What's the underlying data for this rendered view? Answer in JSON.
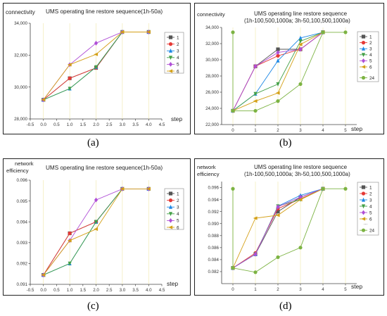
{
  "chart_data": [
    {
      "type": "line",
      "panel_label": "(a)",
      "title": "UMS operating line restore sequence(1h-50a)",
      "ylabel": "connectivity",
      "xlabel": "step",
      "xlim": [
        -0.5,
        4.5
      ],
      "ylim": [
        28000,
        34000
      ],
      "xticks": [
        "-0.5",
        "0.0",
        "0.5",
        "1.0",
        "1.5",
        "2.0",
        "2.5",
        "3.0",
        "3.5",
        "4.0",
        "4.5"
      ],
      "yticks": [
        "28,000",
        "30,000",
        "32,000",
        "34,000"
      ],
      "legend_position": "right",
      "series": [
        {
          "name": "1",
          "color": "#555555",
          "marker": "square",
          "x": [
            0,
            1,
            2,
            3,
            4
          ],
          "y": [
            29200,
            30550,
            31200,
            33450,
            33450
          ]
        },
        {
          "name": "2",
          "color": "#e53935",
          "marker": "circle",
          "x": [
            0,
            1,
            2,
            3,
            4
          ],
          "y": [
            29200,
            30550,
            31200,
            33450,
            33450
          ]
        },
        {
          "name": "3",
          "color": "#1e88e5",
          "marker": "triangle",
          "x": [
            0,
            1,
            2,
            3,
            4
          ],
          "y": [
            29200,
            29900,
            31250,
            33450,
            33450
          ]
        },
        {
          "name": "4",
          "color": "#43a047",
          "marker": "tri-down",
          "x": [
            0,
            1,
            2,
            3,
            4
          ],
          "y": [
            29200,
            29900,
            31250,
            33450,
            33450
          ]
        },
        {
          "name": "5",
          "color": "#b04fd6",
          "marker": "diamond",
          "x": [
            0,
            1,
            2,
            3,
            4
          ],
          "y": [
            29200,
            31400,
            32750,
            33450,
            33450
          ]
        },
        {
          "name": "6",
          "color": "#d4a017",
          "marker": "tri-left",
          "x": [
            0,
            1,
            2,
            3,
            4
          ],
          "y": [
            29200,
            31400,
            32050,
            33450,
            33450
          ]
        }
      ]
    },
    {
      "type": "line",
      "panel_label": "(b)",
      "title": "UMS operating line restore sequence",
      "subtitle": "(1h-100,500,1000a; 3h-50,100,500,1000a)",
      "ylabel": "connectivity",
      "xlabel": "step",
      "xlim": [
        -0.5,
        5.5
      ],
      "ylim": [
        22000,
        34000
      ],
      "xticks": [
        "0",
        "1",
        "2",
        "3",
        "4",
        "5"
      ],
      "yticks": [
        "22,000",
        "24,000",
        "26,000",
        "28,000",
        "30,000",
        "32,000",
        "34,000"
      ],
      "legend_position": "right",
      "series": [
        {
          "name": "1",
          "color": "#555555",
          "marker": "square",
          "x": [
            0,
            1,
            2,
            3,
            4
          ],
          "y": [
            23700,
            29200,
            31300,
            31300,
            33400
          ]
        },
        {
          "name": "2",
          "color": "#e53935",
          "marker": "circle",
          "x": [
            0,
            1,
            2,
            3,
            4
          ],
          "y": [
            23700,
            29200,
            30500,
            31300,
            33400
          ]
        },
        {
          "name": "3",
          "color": "#1e88e5",
          "marker": "triangle",
          "x": [
            0,
            1,
            2,
            3,
            4
          ],
          "y": [
            23700,
            25800,
            29900,
            32700,
            33400
          ]
        },
        {
          "name": "4",
          "color": "#43a047",
          "marker": "tri-down",
          "x": [
            0,
            1,
            2,
            3,
            4
          ],
          "y": [
            23700,
            25800,
            27000,
            32300,
            33400
          ]
        },
        {
          "name": "5",
          "color": "#b04fd6",
          "marker": "diamond",
          "x": [
            0,
            1,
            2,
            3,
            4
          ],
          "y": [
            23700,
            29200,
            30900,
            31300,
            33400
          ]
        },
        {
          "name": "6",
          "color": "#d4a017",
          "marker": "tri-left",
          "x": [
            0,
            1,
            2,
            3,
            4
          ],
          "y": [
            23700,
            24900,
            25900,
            31900,
            33400
          ]
        },
        {
          "name": "24",
          "color": "#7cb342",
          "marker": "circle",
          "x": [
            0,
            0,
            1,
            2,
            3,
            4,
            5
          ],
          "y": [
            33400,
            23700,
            23700,
            24900,
            27000,
            33400,
            33400
          ]
        }
      ]
    },
    {
      "type": "line",
      "panel_label": "(c)",
      "title": "UMS operating line restore sequence(1h-50a)",
      "ylabel": "network efficiency",
      "xlabel": "step",
      "xlim": [
        -0.5,
        4.5
      ],
      "ylim": [
        0.091,
        0.096
      ],
      "xticks": [
        "-0.5",
        "0.0",
        "0.5",
        "1.0",
        "1.5",
        "2.0",
        "2.5",
        "3.0",
        "3.5",
        "4.0",
        "4.5"
      ],
      "yticks": [
        "0.091",
        "0.092",
        "0.093",
        "0.094",
        "0.095",
        "0.096"
      ],
      "legend_position": "right",
      "series": [
        {
          "name": "1",
          "color": "#555555",
          "marker": "square",
          "x": [
            0,
            1,
            2,
            3,
            4
          ],
          "y": [
            0.09145,
            0.09345,
            0.094,
            0.09558,
            0.09558
          ]
        },
        {
          "name": "2",
          "color": "#e53935",
          "marker": "circle",
          "x": [
            0,
            1,
            2,
            3,
            4
          ],
          "y": [
            0.09145,
            0.09345,
            0.094,
            0.09558,
            0.09558
          ]
        },
        {
          "name": "3",
          "color": "#1e88e5",
          "marker": "triangle",
          "x": [
            0,
            1,
            2,
            3,
            4
          ],
          "y": [
            0.09145,
            0.092,
            0.094,
            0.09558,
            0.09558
          ]
        },
        {
          "name": "4",
          "color": "#43a047",
          "marker": "tri-down",
          "x": [
            0,
            1,
            2,
            3,
            4
          ],
          "y": [
            0.09145,
            0.092,
            0.094,
            0.09558,
            0.09558
          ]
        },
        {
          "name": "5",
          "color": "#b04fd6",
          "marker": "diamond",
          "x": [
            0,
            1,
            2,
            3,
            4
          ],
          "y": [
            0.09145,
            0.0931,
            0.09505,
            0.09558,
            0.09558
          ]
        },
        {
          "name": "6",
          "color": "#d4a017",
          "marker": "tri-left",
          "x": [
            0,
            1,
            2,
            3,
            4
          ],
          "y": [
            0.09145,
            0.0931,
            0.09365,
            0.09558,
            0.09558
          ]
        }
      ]
    },
    {
      "type": "line",
      "panel_label": "(d)",
      "title": "UMS operating line restore sequence",
      "subtitle": "(1h-100,500,1000a; 3h-50,100,500,1000a)",
      "ylabel": "network efficiency",
      "xlabel": "step",
      "xlim": [
        -0.5,
        5.5
      ],
      "ylim": [
        0.08,
        0.097
      ],
      "xticks": [
        "0",
        "1",
        "2",
        "3",
        "4",
        "5"
      ],
      "yticks": [
        "0.082",
        "0.084",
        "0.086",
        "0.088",
        "0.090",
        "0.092",
        "0.094",
        "0.096"
      ],
      "legend_position": "right",
      "series": [
        {
          "name": "1",
          "color": "#555555",
          "marker": "square",
          "x": [
            0,
            1,
            2,
            3,
            4
          ],
          "y": [
            0.0826,
            0.0849,
            0.092,
            0.0944,
            0.0958
          ]
        },
        {
          "name": "2",
          "color": "#e53935",
          "marker": "circle",
          "x": [
            0,
            1,
            2,
            3,
            4
          ],
          "y": [
            0.0826,
            0.0851,
            0.0925,
            0.0941,
            0.0958
          ]
        },
        {
          "name": "3",
          "color": "#1e88e5",
          "marker": "triangle",
          "x": [
            0,
            1,
            2,
            3,
            4
          ],
          "y": [
            0.0826,
            0.0849,
            0.0929,
            0.0947,
            0.0958
          ]
        },
        {
          "name": "4",
          "color": "#43a047",
          "marker": "tri-down",
          "x": [
            0,
            1,
            2,
            3,
            4
          ],
          "y": [
            0.0826,
            0.0849,
            0.0929,
            0.094,
            0.0958
          ]
        },
        {
          "name": "5",
          "color": "#b04fd6",
          "marker": "diamond",
          "x": [
            0,
            1,
            2,
            3,
            4
          ],
          "y": [
            0.0826,
            0.0849,
            0.0928,
            0.0944,
            0.0958
          ]
        },
        {
          "name": "6",
          "color": "#d4a017",
          "marker": "tri-left",
          "x": [
            0,
            1,
            2,
            3,
            4
          ],
          "y": [
            0.0826,
            0.0909,
            0.0914,
            0.094,
            0.0958
          ]
        },
        {
          "name": "24",
          "color": "#7cb342",
          "marker": "circle",
          "x": [
            0,
            0,
            1,
            2,
            3,
            4,
            5
          ],
          "y": [
            0.0958,
            0.0826,
            0.0819,
            0.0844,
            0.086,
            0.0958,
            0.0958
          ]
        }
      ]
    }
  ]
}
